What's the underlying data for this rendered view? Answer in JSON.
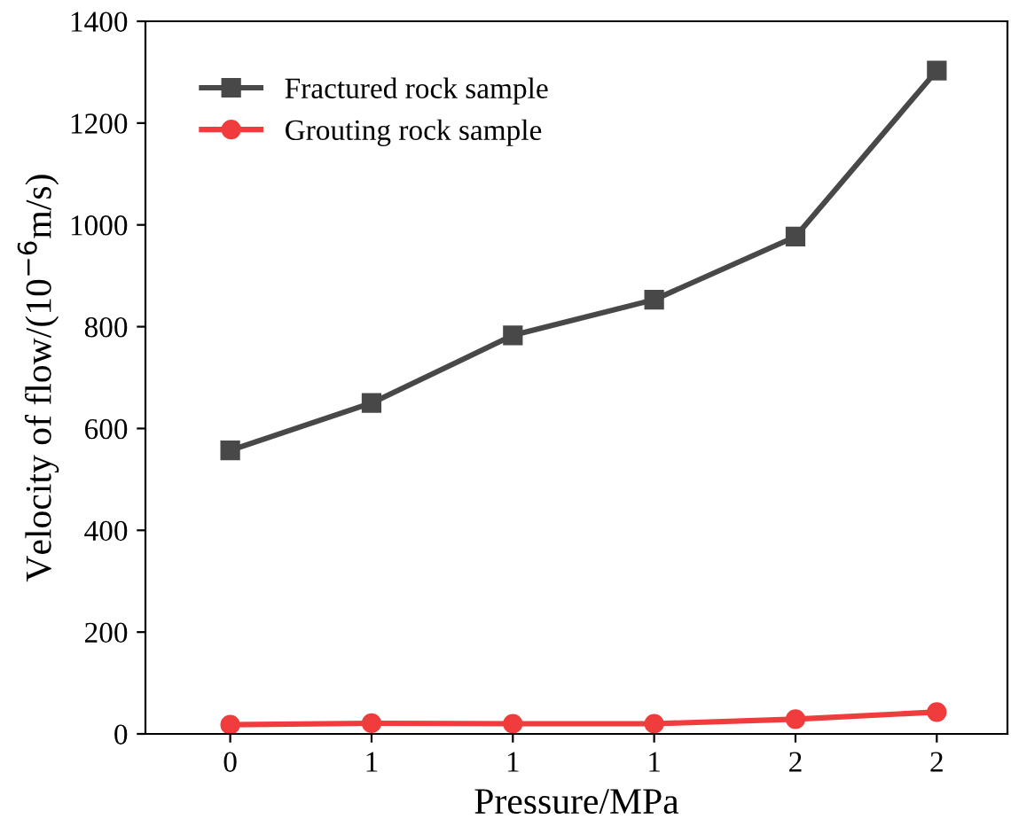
{
  "chart_data": {
    "type": "line",
    "xlabel": "Pressure/MPa",
    "ylabel": "Velocity of flow/(10$^{−6}$m/s)",
    "categories": [
      "0",
      "1",
      "1",
      "1",
      "2",
      "2"
    ],
    "series": [
      {
        "name": "Fractured rock sample",
        "color": "#484848",
        "marker": "square",
        "values": [
          557,
          650,
          783,
          853,
          977,
          1303
        ]
      },
      {
        "name": "Grouting rock sample",
        "color": "#f03c3c",
        "marker": "circle",
        "values": [
          18,
          21,
          20,
          20,
          29,
          43
        ]
      }
    ],
    "ylim": [
      0,
      1400
    ],
    "yticks": [
      0,
      200,
      400,
      600,
      800,
      1000,
      1200,
      1400
    ],
    "grid": false,
    "legend": "top left",
    "line_style": "solid"
  }
}
